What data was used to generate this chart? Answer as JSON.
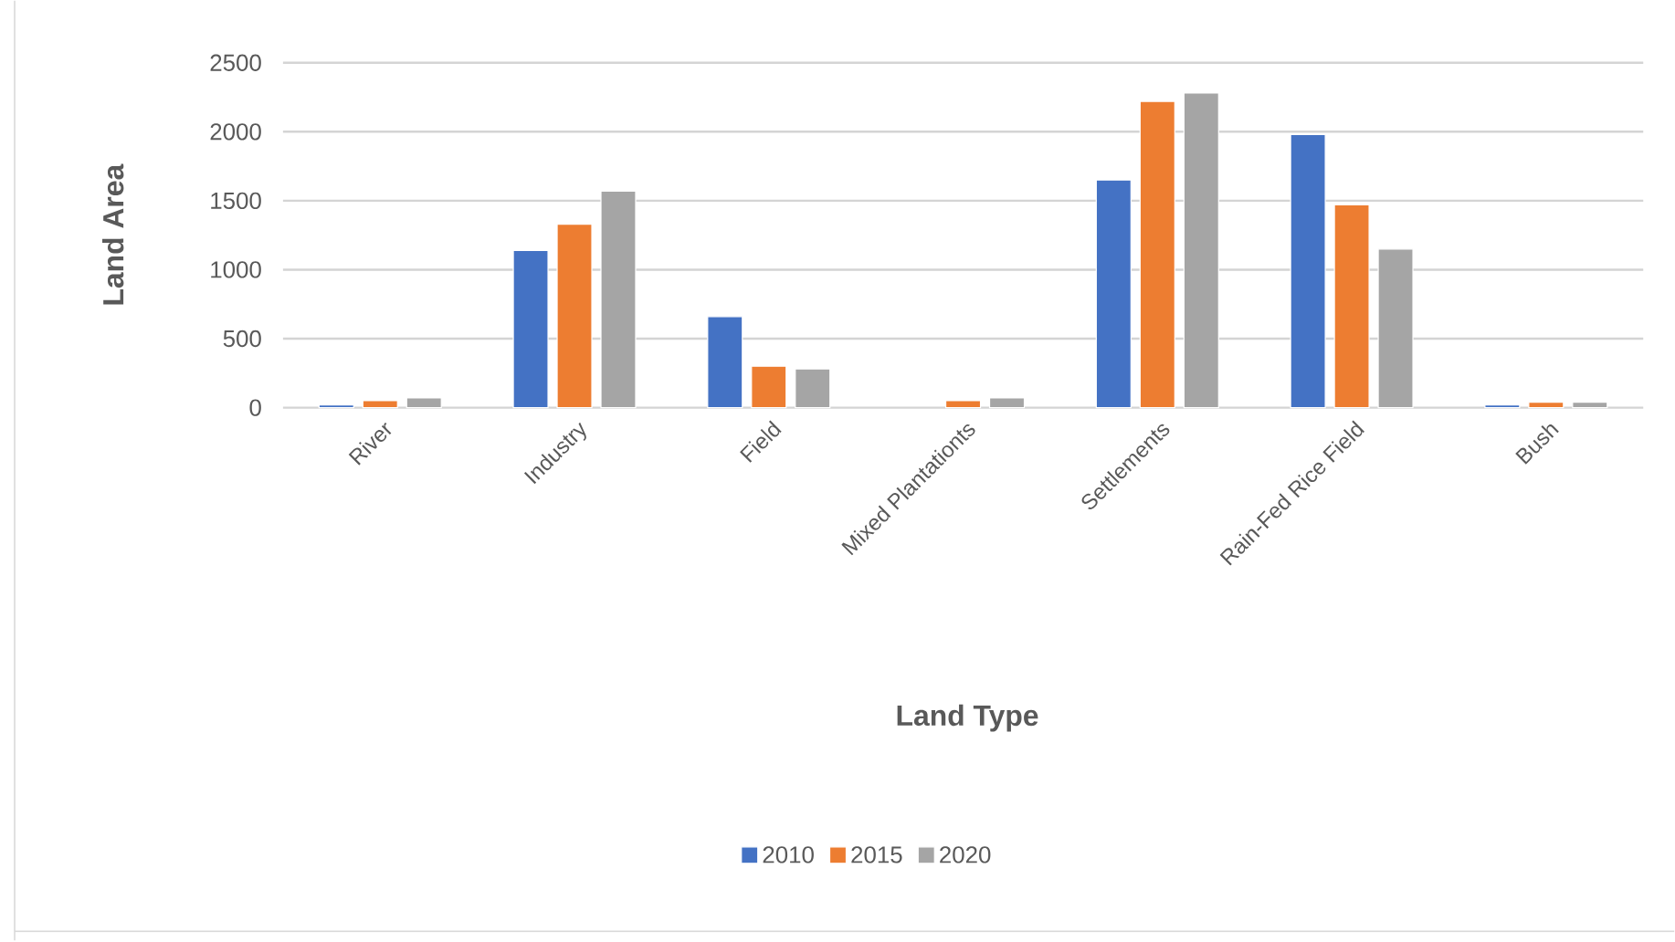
{
  "chart_data": {
    "type": "bar",
    "xlabel": "Land Type",
    "ylabel": "Land Area",
    "categories": [
      "River",
      "Industry",
      "Field",
      "Mixed Plantationts",
      "Settlements",
      "Rain-Fed Rice Field",
      "Bush"
    ],
    "series": [
      {
        "name": "2010",
        "color": "#4472c4",
        "values": [
          20,
          1140,
          660,
          null,
          1650,
          1980,
          20
        ]
      },
      {
        "name": "2015",
        "color": "#ed7d31",
        "values": [
          50,
          1330,
          300,
          50,
          2220,
          1470,
          40
        ]
      },
      {
        "name": "2020",
        "color": "#a5a5a5",
        "values": [
          70,
          1570,
          280,
          70,
          2280,
          1150,
          40
        ]
      }
    ],
    "ylim": [
      0,
      2500
    ],
    "yticks": [
      0,
      500,
      1000,
      1500,
      2000,
      2500
    ],
    "grid": "y",
    "legend": "bottom"
  }
}
